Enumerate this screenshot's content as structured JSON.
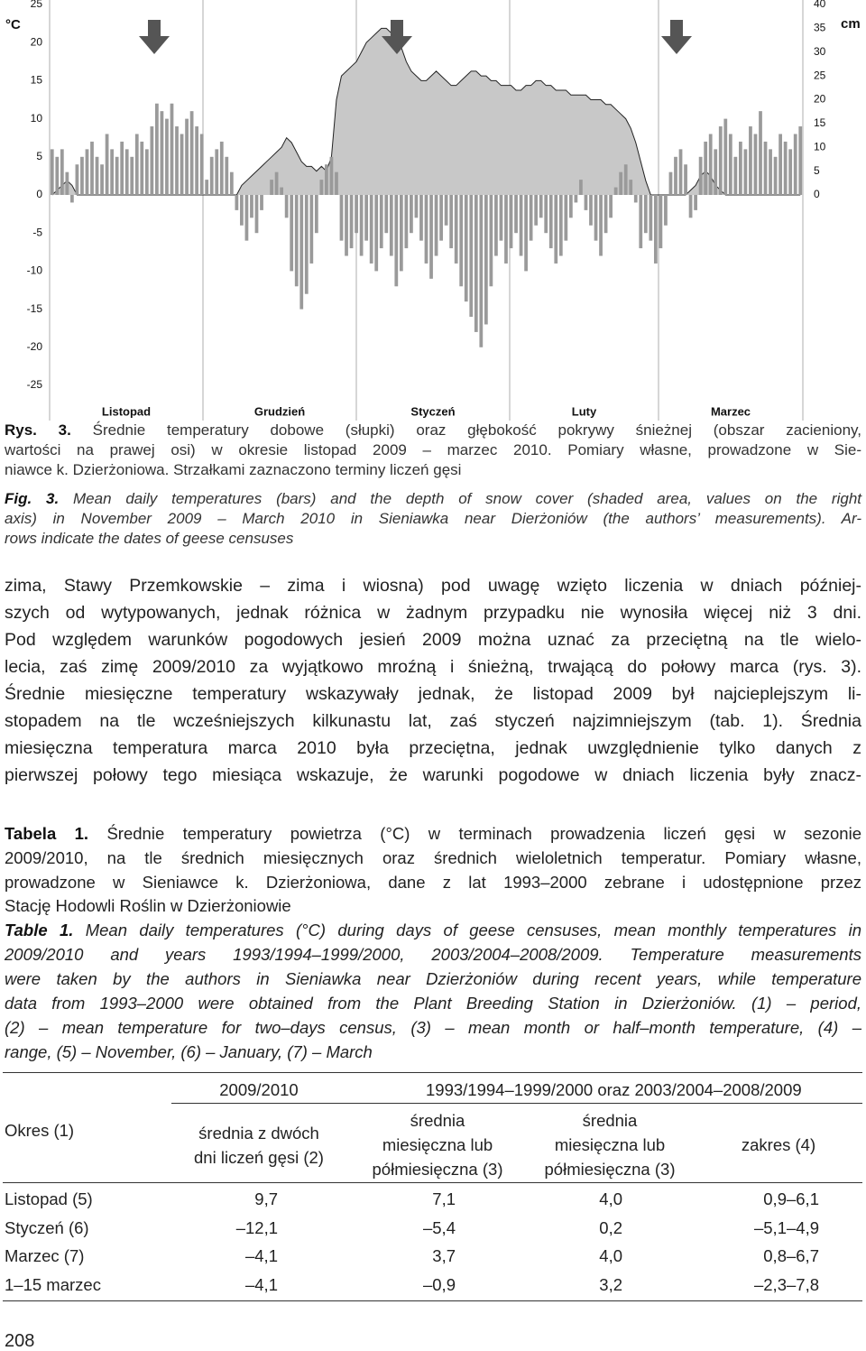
{
  "chart_data": {
    "type": "bar",
    "y_label": "°C",
    "y2_label": "cm",
    "months": [
      "Listopad",
      "Grudzień",
      "Styczeń",
      "Luty",
      "Marzec"
    ],
    "ylim": [
      -25,
      25
    ],
    "yticks": [
      25,
      20,
      15,
      10,
      5,
      0,
      -5,
      -10,
      -15,
      -20,
      -25
    ],
    "y2lim": [
      -40,
      40
    ],
    "y2ticks": [
      40,
      35,
      30,
      25,
      20,
      15,
      10,
      5,
      0
    ],
    "series": [
      {
        "type": "area",
        "axis": "y2",
        "color": "#c8c8c8",
        "values": [
          0,
          1,
          2,
          3,
          2,
          0,
          0,
          0,
          0,
          0,
          0,
          0,
          0,
          0,
          0,
          0,
          0,
          0,
          0,
          0,
          0,
          0,
          0,
          0,
          0,
          0,
          0,
          0,
          0,
          0,
          0,
          0,
          0,
          0,
          0,
          0,
          0,
          0,
          2,
          3,
          4,
          5,
          6,
          7,
          8,
          9,
          10,
          12,
          11,
          9,
          7,
          6,
          6,
          5,
          6,
          5,
          8,
          20,
          25,
          26,
          27,
          28,
          30,
          32,
          33,
          34,
          35,
          35,
          34,
          33,
          31,
          28,
          26,
          25,
          24,
          24,
          25,
          26,
          25,
          24,
          23,
          23,
          24,
          25,
          26,
          26,
          25,
          25,
          24,
          24,
          23,
          23,
          23,
          22,
          22,
          23,
          23,
          24,
          24,
          23,
          23,
          22,
          22,
          22,
          21,
          21,
          21,
          21,
          20,
          20,
          20,
          19,
          19,
          18,
          17,
          16,
          14,
          11,
          7,
          3,
          0,
          0,
          0,
          0,
          0,
          0,
          0,
          0,
          1,
          2,
          4,
          5,
          4,
          2,
          1,
          0,
          0,
          0,
          0,
          0,
          0,
          0,
          0,
          0,
          0,
          0,
          0,
          0,
          0,
          0,
          0
        ]
      },
      {
        "type": "bar",
        "color": "#9a9a9a",
        "values": [
          6,
          5,
          6,
          3,
          -1,
          4,
          5,
          6,
          7,
          5,
          4,
          8,
          6,
          5,
          7,
          6,
          5,
          8,
          7,
          6,
          9,
          12,
          11,
          10,
          12,
          9,
          8,
          10,
          11,
          9,
          8,
          2,
          5,
          6,
          7,
          5,
          3,
          -2,
          -4,
          -6,
          -3,
          -5,
          -2,
          0,
          2,
          3,
          1,
          -3,
          -10,
          -12,
          -15,
          -13,
          -9,
          -5,
          2,
          4,
          5,
          3,
          -6,
          -8,
          -7,
          -5,
          -8,
          -6,
          -9,
          -10,
          -7,
          -5,
          -8,
          -12,
          -10,
          -7,
          -5,
          -3,
          -6,
          -9,
          -11,
          -8,
          -6,
          -4,
          -7,
          -9,
          -12,
          -14,
          -16,
          -18,
          -20,
          -17,
          -12,
          -8,
          -6,
          -9,
          -7,
          -5,
          -8,
          -10,
          -6,
          -4,
          -3,
          -5,
          -7,
          -9,
          -8,
          -6,
          -3,
          -1,
          2,
          -2,
          -4,
          -6,
          -8,
          -5,
          -3,
          1,
          3,
          4,
          2,
          -1,
          -7,
          -5,
          -6,
          -9,
          -7,
          -4,
          3,
          5,
          6,
          4,
          -3,
          -2,
          5,
          7,
          8,
          6,
          9,
          10,
          8,
          5,
          7,
          6,
          9,
          8,
          11,
          7,
          6,
          5,
          8,
          7,
          6,
          8,
          9
        ]
      }
    ]
  },
  "caption_pl": {
    "label": "Rys. 3.",
    "lines": [
      "Średnie temperatury dobowe (słupki) oraz głębokość pokrywy śnieżnej (obszar zacieniony,",
      "wartości na prawej osi) w okresie listopad 2009 – marzec 2010. Pomiary własne, prowadzone w Sie-",
      "niawce k. Dzierżoniowa. Strzałkami zaznaczono terminy liczeń gęsi"
    ]
  },
  "caption_en": {
    "label": "Fig. 3.",
    "lines": [
      "Mean daily temperatures (bars) and the depth of snow cover (shaded area, values on the right",
      "axis) in November 2009 – March 2010 in Sieniawka near Dierżoniów (the authors’ measurements). Ar-",
      "rows indicate the dates of geese censuses"
    ]
  },
  "body": {
    "lines": [
      "zima, Stawy Przemkowskie – zima i wiosna) pod uwagę wzięto liczenia w dniach później-",
      "szych od wytypowanych, jednak różnica w żadnym przypadku nie wynosiła więcej niż 3 dni.",
      "Pod względem warunków pogodowych jesień 2009 można uznać za przeciętną na tle wielo-",
      "lecia, zaś zimę 2009/2010 za wyjątkowo mroźną i śnieżną, trwającą do połowy marca (rys. 3).",
      "Średnie miesięczne temperatury wskazywały jednak, że listopad 2009 był najcieplejszym li-",
      "stopadem na tle wcześniejszych kilkunastu lat, zaś styczeń najzimniejszym (tab. 1). Średnia",
      "miesięczna temperatura marca 2010 była przeciętna, jednak uwzględnienie tylko danych z",
      "pierwszej połowy tego miesiąca wskazuje, że warunki pogodowe w dniach liczenia były znacz-"
    ]
  },
  "table_caption_pl": {
    "label": "Tabela 1.",
    "lines": [
      "Średnie temperatury powietrza (°C) w terminach prowadzenia liczeń gęsi w sezonie",
      "2009/2010, na tle średnich miesięcznych oraz średnich wieloletnich temperatur. Pomiary własne,",
      "prowadzone w Sieniawce k. Dzierżoniowa, dane z lat 1993–2000 zebrane i udostępnione przez",
      "Stację Hodowli Roślin w Dzierżoniowie"
    ]
  },
  "table_caption_en": {
    "label": "Table 1.",
    "lines": [
      "Mean daily temperatures (°C) during days of geese censuses, mean monthly temperatures in",
      "2009/2010 and years 1993/1994–1999/2000, 2003/2004–2008/2009. Temperature measurements",
      "were taken by the authors in Sieniawka near Dzierżoniów during recent years, while temperature",
      "data from 1993–2000 were obtained from the Plant Breeding Station in Dzierżoniów. (1) – period,",
      "(2) – mean temperature for two–days census, (3) – mean month or half–month temperature, (4) –",
      "range, (5) – November, (6) – January, (7) – March"
    ]
  },
  "table": {
    "header": {
      "period": "Okres (1)",
      "group1": "2009/2010",
      "group2": "1993/1994–1999/2000 oraz 2003/2004–2008/2009",
      "columns": [
        [
          "średnia z dwóch",
          "dni liczeń gęsi (2)"
        ],
        [
          "średnia",
          "miesięczna lub",
          "półmiesięczna (3)"
        ],
        [
          "średnia",
          "miesięczna lub",
          "półmiesięczna (3)"
        ],
        [
          "zakres (4)"
        ]
      ]
    },
    "rows": [
      [
        "Listopad (5)",
        "9,7",
        "7,1",
        "4,0",
        "0,9–6,1"
      ],
      [
        "Styczeń (6)",
        "–12,1",
        "–5,4",
        "0,2",
        "–5,1–4,9"
      ],
      [
        "Marzec (7)",
        "–4,1",
        "3,7",
        "4,0",
        "0,8–6,7"
      ],
      [
        "1–15 marzec",
        "–4,1",
        "–0,9",
        "3,2",
        "–2,3–7,8"
      ]
    ]
  },
  "page_number": "208"
}
